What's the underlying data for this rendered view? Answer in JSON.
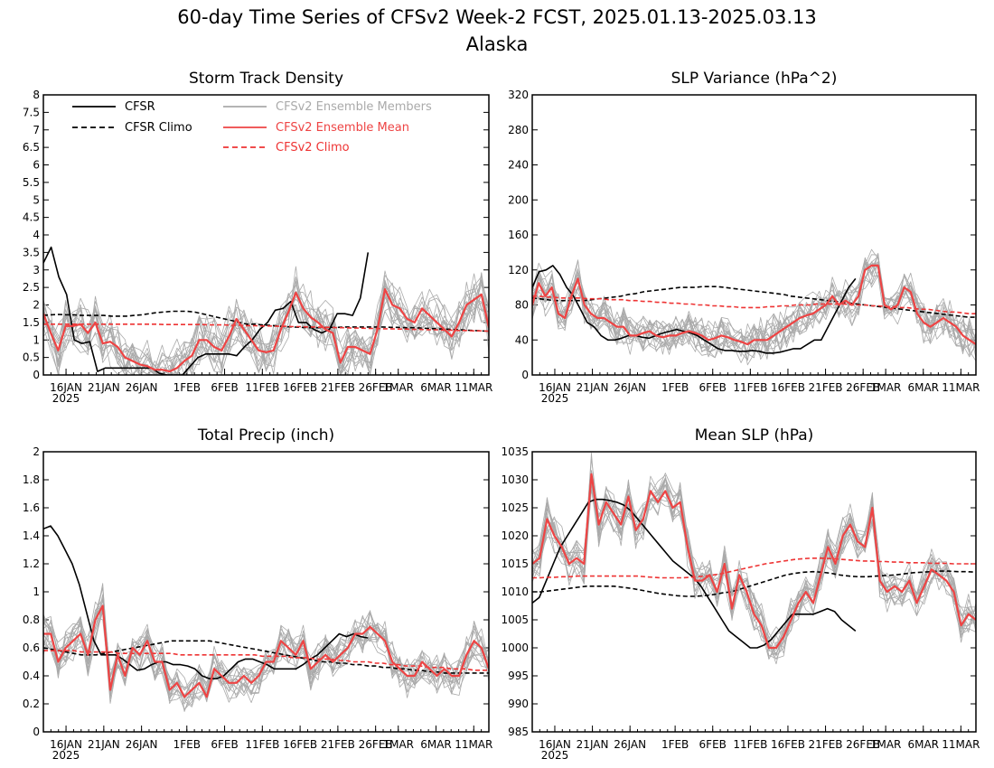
{
  "title": "60-day Time Series of CFSv2 Week-2 FCST, 2025.01.13-2025.03.13",
  "subtitle": "Alaska",
  "colors": {
    "cfsr": "#000000",
    "ensemble_member": "#aaaaaa",
    "ensemble_mean": "#ee4444",
    "cfsv2_climo": "#ee3333"
  },
  "legend": {
    "cfsr": "CFSR",
    "cfsr_climo": "CFSR Climo",
    "members": "CFSv2 Ensemble Members",
    "mean": "CFSv2 Ensemble Mean",
    "cfsv2_climo": "CFSv2 Climo"
  },
  "x_axis": {
    "start": "2025-01-13",
    "end": "2025-03-13",
    "ticks": [
      {
        "date": "2025-01-16",
        "label": "16JAN"
      },
      {
        "date": "2025-01-21",
        "label": "21JAN"
      },
      {
        "date": "2025-01-26",
        "label": "26JAN"
      },
      {
        "date": "2025-02-01",
        "label": "1FEB"
      },
      {
        "date": "2025-02-06",
        "label": "6FEB"
      },
      {
        "date": "2025-02-11",
        "label": "11FEB"
      },
      {
        "date": "2025-02-16",
        "label": "16FEB"
      },
      {
        "date": "2025-02-21",
        "label": "21FEB"
      },
      {
        "date": "2025-02-26",
        "label": "26FEB"
      },
      {
        "date": "2025-03-01",
        "label": "1MAR"
      },
      {
        "date": "2025-03-06",
        "label": "6MAR"
      },
      {
        "date": "2025-03-11",
        "label": "11MAR"
      }
    ],
    "year_label": "2025"
  },
  "chart_data": [
    {
      "type": "line",
      "title": "Storm Track Density",
      "ylim": [
        0,
        8
      ],
      "yticks": [
        "0",
        "0.5",
        "1",
        "1.5",
        "2",
        "2.5",
        "3",
        "3.5",
        "4",
        "4.5",
        "5",
        "5.5",
        "6",
        "6.5",
        "7",
        "7.5",
        "8"
      ],
      "cfsr": [
        3.2,
        3.65,
        2.8,
        2.3,
        1.0,
        0.9,
        0.95,
        0.1,
        0.2,
        0.2,
        0.2,
        0.2,
        0.2,
        0.2,
        0.2,
        0.05,
        0.0,
        0.0,
        0.0,
        0.25,
        0.5,
        0.6,
        0.6,
        0.6,
        0.6,
        0.55,
        0.8,
        1.0,
        1.3,
        1.5,
        1.85,
        1.9,
        2.1,
        1.5,
        1.5,
        1.3,
        1.2,
        1.3,
        1.75,
        1.75,
        1.7,
        2.2,
        3.5
      ],
      "cfsr_climo": [
        1.7,
        1.72,
        1.73,
        1.72,
        1.72,
        1.7,
        1.7,
        1.7,
        1.7,
        1.68,
        1.68,
        1.68,
        1.7,
        1.72,
        1.75,
        1.78,
        1.8,
        1.82,
        1.82,
        1.82,
        1.8,
        1.75,
        1.7,
        1.65,
        1.6,
        1.55,
        1.5,
        1.45,
        1.45,
        1.43,
        1.42,
        1.4,
        1.38,
        1.37,
        1.36,
        1.35,
        1.35,
        1.35,
        1.36,
        1.36,
        1.37,
        1.37,
        1.37,
        1.37,
        1.37,
        1.37,
        1.36,
        1.36,
        1.35,
        1.35,
        1.34,
        1.33,
        1.32,
        1.31,
        1.3,
        1.29,
        1.28,
        1.27,
        1.26,
        1.25
      ],
      "mean": [
        1.75,
        1.2,
        0.7,
        1.4,
        1.4,
        1.45,
        1.2,
        1.5,
        0.9,
        0.95,
        0.8,
        0.5,
        0.4,
        0.3,
        0.25,
        0.15,
        0.15,
        0.1,
        0.2,
        0.4,
        0.55,
        1.0,
        1.0,
        0.8,
        0.7,
        1.1,
        1.6,
        1.3,
        1.0,
        0.7,
        0.65,
        0.7,
        1.3,
        1.8,
        2.35,
        1.9,
        1.65,
        1.5,
        1.3,
        1.2,
        0.35,
        0.8,
        0.8,
        0.7,
        0.6,
        1.3,
        2.45,
        2.0,
        1.9,
        1.6,
        1.5,
        1.9,
        1.7,
        1.5,
        1.3,
        1.1,
        1.5,
        2.0,
        2.15,
        2.3,
        1.35
      ],
      "climo": [
        1.45,
        1.45,
        1.45,
        1.45,
        1.45,
        1.45,
        1.45,
        1.45,
        1.45,
        1.45,
        1.45,
        1.45,
        1.45,
        1.45,
        1.45,
        1.45,
        1.44,
        1.44,
        1.44,
        1.44,
        1.44,
        1.44,
        1.43,
        1.43,
        1.43,
        1.42,
        1.42,
        1.41,
        1.41,
        1.4,
        1.4,
        1.39,
        1.39,
        1.38,
        1.38,
        1.37,
        1.37,
        1.36,
        1.36,
        1.35,
        1.35,
        1.34,
        1.34,
        1.33,
        1.33,
        1.32,
        1.32,
        1.31,
        1.31,
        1.3,
        1.3,
        1.29,
        1.29,
        1.28,
        1.28,
        1.27,
        1.27,
        1.26,
        1.26,
        1.25
      ]
    },
    {
      "type": "line",
      "title": "SLP Variance (hPa^2)",
      "ylim": [
        0,
        320
      ],
      "yticks": [
        "0",
        "40",
        "80",
        "120",
        "160",
        "200",
        "240",
        "280",
        "320"
      ],
      "cfsr": [
        100,
        118,
        120,
        125,
        115,
        100,
        90,
        75,
        60,
        55,
        45,
        40,
        40,
        42,
        45,
        45,
        43,
        42,
        45,
        48,
        50,
        52,
        50,
        48,
        45,
        40,
        35,
        30,
        28,
        28,
        27,
        27,
        28,
        27,
        25,
        25,
        26,
        28,
        30,
        30,
        35,
        40,
        40,
        55,
        70,
        85,
        100,
        110
      ],
      "cfsr_climo": [
        88,
        87,
        86,
        85,
        85,
        85,
        85,
        85,
        86,
        87,
        88,
        89,
        90,
        92,
        93,
        95,
        96,
        97,
        98,
        99,
        100,
        100,
        100,
        101,
        101,
        101,
        100,
        99,
        98,
        97,
        96,
        95,
        94,
        93,
        92,
        90,
        89,
        88,
        87,
        86,
        85,
        84,
        83,
        82,
        81,
        80,
        79,
        78,
        77,
        76,
        75,
        74,
        73,
        72,
        71,
        70,
        69,
        68,
        67,
        66,
        66
      ],
      "mean": [
        80,
        105,
        90,
        100,
        70,
        65,
        90,
        110,
        80,
        70,
        65,
        65,
        60,
        55,
        55,
        45,
        45,
        48,
        50,
        45,
        43,
        45,
        45,
        48,
        50,
        48,
        45,
        40,
        42,
        45,
        43,
        40,
        38,
        35,
        40,
        40,
        40,
        45,
        50,
        55,
        60,
        65,
        68,
        70,
        75,
        80,
        90,
        80,
        85,
        80,
        90,
        120,
        125,
        125,
        80,
        75,
        80,
        100,
        95,
        70,
        60,
        55,
        60,
        65,
        60,
        55,
        45,
        40,
        35
      ],
      "climo": [
        90,
        90,
        89,
        89,
        88,
        88,
        88,
        88,
        87,
        87,
        87,
        86,
        86,
        86,
        85,
        85,
        84,
        84,
        83,
        83,
        82,
        82,
        81,
        81,
        80,
        80,
        79,
        79,
        78,
        78,
        77,
        77,
        77,
        77,
        78,
        78,
        79,
        79,
        80,
        80,
        80,
        81,
        81,
        81,
        81,
        81,
        80,
        80,
        80,
        79,
        79,
        78,
        78,
        77,
        77,
        76,
        75,
        75,
        74,
        73,
        72,
        72,
        71,
        70,
        70
      ]
    },
    {
      "type": "line",
      "title": "Total Precip (inch)",
      "ylim": [
        0,
        2
      ],
      "yticks": [
        "0",
        "0.2",
        "0.4",
        "0.6",
        "0.8",
        "1",
        "1.2",
        "1.4",
        "1.6",
        "1.8",
        "2"
      ],
      "cfsr": [
        1.45,
        1.47,
        1.4,
        1.3,
        1.2,
        1.05,
        0.85,
        0.65,
        0.55,
        0.55,
        0.55,
        0.52,
        0.48,
        0.44,
        0.45,
        0.48,
        0.5,
        0.5,
        0.48,
        0.48,
        0.47,
        0.45,
        0.4,
        0.38,
        0.38,
        0.4,
        0.45,
        0.5,
        0.52,
        0.52,
        0.5,
        0.48,
        0.45,
        0.45,
        0.45,
        0.45,
        0.48,
        0.52,
        0.55,
        0.6,
        0.65,
        0.7,
        0.68,
        0.7,
        0.68,
        0.67
      ],
      "cfsr_climo": [
        0.6,
        0.59,
        0.58,
        0.57,
        0.56,
        0.55,
        0.55,
        0.55,
        0.56,
        0.57,
        0.58,
        0.59,
        0.6,
        0.61,
        0.62,
        0.63,
        0.64,
        0.65,
        0.65,
        0.65,
        0.65,
        0.65,
        0.65,
        0.64,
        0.63,
        0.62,
        0.61,
        0.6,
        0.59,
        0.58,
        0.57,
        0.56,
        0.55,
        0.54,
        0.53,
        0.52,
        0.51,
        0.5,
        0.5,
        0.49,
        0.49,
        0.48,
        0.48,
        0.47,
        0.47,
        0.46,
        0.46,
        0.45,
        0.45,
        0.44,
        0.44,
        0.43,
        0.43,
        0.42,
        0.42,
        0.42,
        0.42,
        0.42,
        0.42,
        0.42
      ],
      "mean": [
        0.7,
        0.7,
        0.5,
        0.6,
        0.65,
        0.7,
        0.55,
        0.8,
        0.9,
        0.3,
        0.55,
        0.4,
        0.6,
        0.55,
        0.65,
        0.5,
        0.5,
        0.3,
        0.35,
        0.25,
        0.3,
        0.35,
        0.25,
        0.45,
        0.4,
        0.35,
        0.35,
        0.4,
        0.35,
        0.4,
        0.5,
        0.5,
        0.65,
        0.6,
        0.55,
        0.65,
        0.45,
        0.5,
        0.55,
        0.5,
        0.55,
        0.6,
        0.7,
        0.7,
        0.75,
        0.7,
        0.65,
        0.5,
        0.45,
        0.4,
        0.4,
        0.5,
        0.45,
        0.4,
        0.45,
        0.4,
        0.4,
        0.55,
        0.65,
        0.6,
        0.45
      ],
      "climo": [
        0.58,
        0.58,
        0.58,
        0.58,
        0.58,
        0.57,
        0.57,
        0.57,
        0.57,
        0.57,
        0.56,
        0.56,
        0.56,
        0.56,
        0.56,
        0.56,
        0.56,
        0.56,
        0.55,
        0.55,
        0.55,
        0.55,
        0.55,
        0.55,
        0.55,
        0.55,
        0.55,
        0.55,
        0.55,
        0.54,
        0.54,
        0.54,
        0.54,
        0.53,
        0.53,
        0.53,
        0.52,
        0.52,
        0.52,
        0.51,
        0.51,
        0.5,
        0.5,
        0.5,
        0.49,
        0.49,
        0.48,
        0.48,
        0.47,
        0.47,
        0.47,
        0.46,
        0.46,
        0.46,
        0.45,
        0.45,
        0.45,
        0.44,
        0.44,
        0.44
      ]
    },
    {
      "type": "line",
      "title": "Mean SLP (hPa)",
      "ylim": [
        985,
        1035
      ],
      "yticks": [
        "985",
        "990",
        "995",
        "1000",
        "1005",
        "1010",
        "1015",
        "1020",
        "1025",
        "1030",
        "1035"
      ],
      "cfsr": [
        1008,
        1009,
        1012,
        1015,
        1018,
        1020,
        1022,
        1024,
        1026,
        1026.5,
        1026.5,
        1026.3,
        1026,
        1025.5,
        1024.5,
        1023,
        1021.5,
        1020,
        1018.5,
        1017,
        1015.5,
        1014.5,
        1013.5,
        1012.5,
        1011,
        1009,
        1007,
        1005,
        1003,
        1002,
        1001,
        1000,
        1000,
        1000.5,
        1001.5,
        1003,
        1004.5,
        1006,
        1006,
        1006,
        1006,
        1006.5,
        1007,
        1006.5,
        1005,
        1004,
        1003
      ],
      "cfsr_climo": [
        1010,
        1010,
        1010.2,
        1010.4,
        1010.6,
        1010.8,
        1011,
        1011,
        1011,
        1011,
        1010.8,
        1010.6,
        1010.3,
        1010,
        1009.7,
        1009.5,
        1009.3,
        1009.2,
        1009.2,
        1009.3,
        1009.5,
        1009.8,
        1010,
        1010.5,
        1011,
        1011.5,
        1012,
        1012.5,
        1013,
        1013.3,
        1013.5,
        1013.6,
        1013.5,
        1013.3,
        1013,
        1012.8,
        1012.7,
        1012.7,
        1012.8,
        1012.9,
        1013,
        1013.2,
        1013.4,
        1013.5,
        1013.6,
        1013.7,
        1013.7,
        1013.6,
        1013.6,
        1013.5
      ],
      "mean": [
        1015,
        1016,
        1023,
        1020,
        1018,
        1015,
        1016,
        1015,
        1031,
        1022,
        1026,
        1024,
        1022,
        1027,
        1021,
        1023,
        1028,
        1026,
        1028,
        1025,
        1026,
        1018,
        1012,
        1012,
        1013,
        1010,
        1015,
        1007,
        1013,
        1010,
        1006,
        1004,
        1000,
        1000,
        1002,
        1005,
        1008,
        1010,
        1008,
        1013,
        1018,
        1015,
        1020,
        1022,
        1019,
        1018,
        1025,
        1012,
        1010,
        1011,
        1010,
        1012,
        1008,
        1011,
        1014,
        1013,
        1012,
        1010,
        1004,
        1006,
        1005
      ],
      "climo": [
        1012.5,
        1012.5,
        1012.6,
        1012.6,
        1012.7,
        1012.7,
        1012.8,
        1012.8,
        1012.8,
        1012.8,
        1012.8,
        1012.8,
        1012.8,
        1012.8,
        1012.8,
        1012.7,
        1012.6,
        1012.5,
        1012.5,
        1012.5,
        1012.5,
        1012.6,
        1012.7,
        1012.8,
        1013,
        1013.2,
        1013.5,
        1013.8,
        1014.1,
        1014.4,
        1014.7,
        1015,
        1015.2,
        1015.4,
        1015.6,
        1015.8,
        1015.9,
        1016,
        1016,
        1016,
        1015.9,
        1015.8,
        1015.7,
        1015.6,
        1015.5,
        1015.5,
        1015.4,
        1015.4,
        1015.3,
        1015.3,
        1015.2,
        1015.2,
        1015.2,
        1015.1,
        1015.1,
        1015.1,
        1015,
        1015,
        1015,
        1015
      ]
    }
  ]
}
